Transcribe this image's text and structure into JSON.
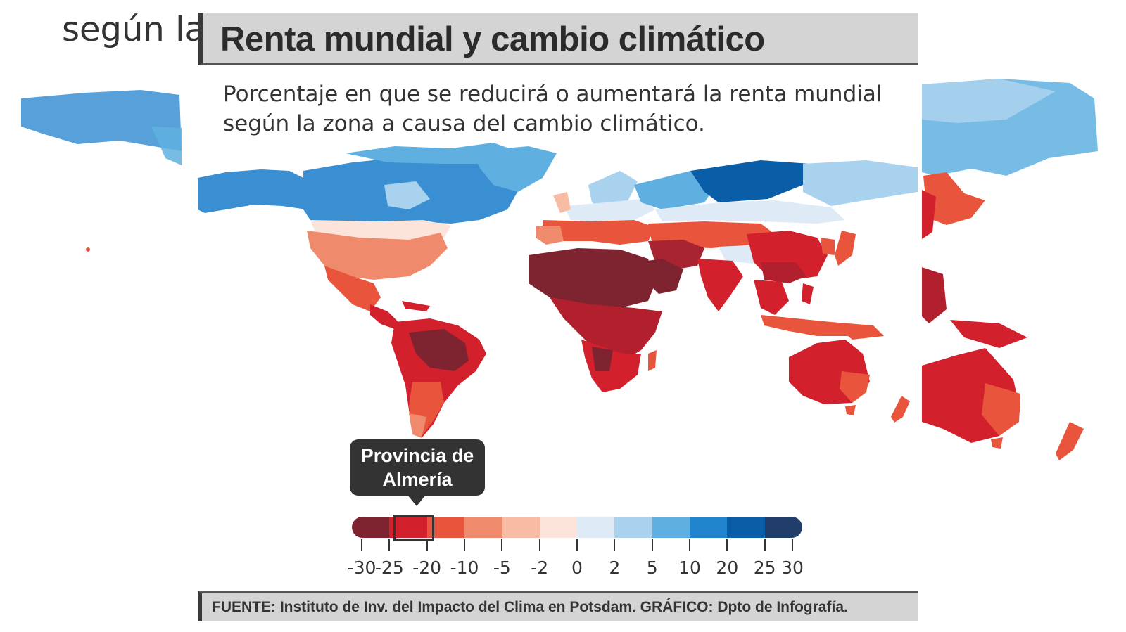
{
  "background": {
    "partial_text": "según la"
  },
  "header": {
    "title": "Renta mundial y cambio climático"
  },
  "subtitle": "Porcentaje en que se reducirá o aumentará la renta mundial según la zona a causa del cambio climático.",
  "callout": {
    "line1": "Provincia de",
    "line2": "Almería",
    "highlighted_range": [
      -25,
      -20
    ]
  },
  "legend": {
    "colors": [
      "#7d2430",
      "#d2202c",
      "#e8553c",
      "#f08a6c",
      "#f8bca4",
      "#fce4da",
      "#deeaf5",
      "#a8d2ee",
      "#5fb0e0",
      "#1f84cc",
      "#0a5ea8",
      "#213e6a"
    ],
    "ticks": [
      "-30",
      "-25",
      "-20",
      "-10",
      "-5",
      "-2",
      "0",
      "2",
      "5",
      "10",
      "20",
      "25",
      "30"
    ]
  },
  "footer": {
    "source": "FUENTE: Instituto de Inv. del Impacto del Clima en Potsdam. GRÁFICO: Dpto de Infografía."
  },
  "map_regions": [
    {
      "name": "alaska",
      "class": "+20",
      "color": "#3a8fd3"
    },
    {
      "name": "canada",
      "class": "+20",
      "color": "#3a8fd3"
    },
    {
      "name": "greenland",
      "class": "+10",
      "color": "#5fb0e0"
    },
    {
      "name": "usa-north",
      "class": "+5",
      "color": "#a8d2ee"
    },
    {
      "name": "usa-south",
      "class": "-5",
      "color": "#f08a6c"
    },
    {
      "name": "mexico",
      "class": "-10",
      "color": "#e8553c"
    },
    {
      "name": "central-america",
      "class": "-20",
      "color": "#d2202c"
    },
    {
      "name": "south-america-north",
      "class": "-20",
      "color": "#d2202c"
    },
    {
      "name": "brazil-interior",
      "class": "-30",
      "color": "#7d2430"
    },
    {
      "name": "south-america-south",
      "class": "-10",
      "color": "#e8553c"
    },
    {
      "name": "patagonia",
      "class": "-5",
      "color": "#f08a6c"
    },
    {
      "name": "northern-europe",
      "class": "+2",
      "color": "#deeaf5"
    },
    {
      "name": "scandinavia",
      "class": "+5",
      "color": "#a8d2ee"
    },
    {
      "name": "southern-europe",
      "class": "-10",
      "color": "#e8553c"
    },
    {
      "name": "russia-west",
      "class": "+10",
      "color": "#5fb0e0"
    },
    {
      "name": "russia-central",
      "class": "+25",
      "color": "#0a5ea8"
    },
    {
      "name": "russia-east",
      "class": "+5",
      "color": "#a8d2ee"
    },
    {
      "name": "north-africa",
      "class": "-30",
      "color": "#7d2430"
    },
    {
      "name": "central-africa",
      "class": "-25",
      "color": "#b1202c"
    },
    {
      "name": "southern-africa",
      "class": "-20",
      "color": "#d2202c"
    },
    {
      "name": "madagascar",
      "class": "-10",
      "color": "#e8553c"
    },
    {
      "name": "middle-east",
      "class": "-25",
      "color": "#a82432"
    },
    {
      "name": "arabia",
      "class": "-30",
      "color": "#7d2430"
    },
    {
      "name": "central-asia",
      "class": "-10",
      "color": "#e8553c"
    },
    {
      "name": "india",
      "class": "-20",
      "color": "#d2202c"
    },
    {
      "name": "china",
      "class": "-20",
      "color": "#d2202c"
    },
    {
      "name": "tibet",
      "class": "+2",
      "color": "#deeaf5"
    },
    {
      "name": "japan",
      "class": "-10",
      "color": "#e8553c"
    },
    {
      "name": "southeast-asia",
      "class": "-20",
      "color": "#d2202c"
    },
    {
      "name": "indonesia",
      "class": "-10",
      "color": "#e8553c"
    },
    {
      "name": "australia",
      "class": "-20",
      "color": "#d2202c"
    },
    {
      "name": "australia-east",
      "class": "-10",
      "color": "#e8553c"
    },
    {
      "name": "new-zealand",
      "class": "-10",
      "color": "#e8553c"
    }
  ]
}
